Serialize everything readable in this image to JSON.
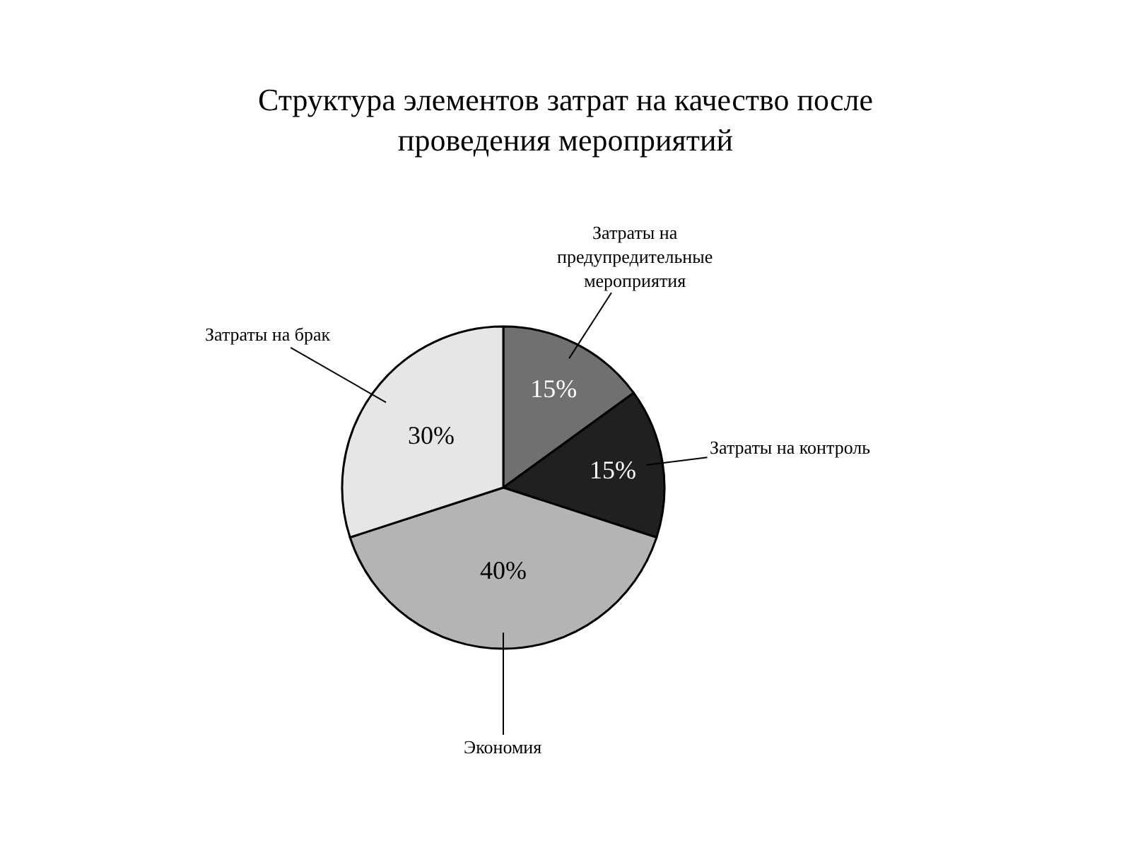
{
  "chart_data": {
    "type": "pie",
    "title": "Структура элементов затрат на качество после проведения мероприятий",
    "categories": [
      "Затраты на предупредительные мероприятия",
      "Затраты на контроль",
      "Экономия",
      "Затраты на брак"
    ],
    "values": [
      15,
      15,
      40,
      30
    ],
    "colors": [
      "#707070",
      "#202020",
      "#b4b4b4",
      "#e6e6e6"
    ],
    "value_labels": [
      "15%",
      "15%",
      "40%",
      "30%"
    ],
    "legend": false
  }
}
